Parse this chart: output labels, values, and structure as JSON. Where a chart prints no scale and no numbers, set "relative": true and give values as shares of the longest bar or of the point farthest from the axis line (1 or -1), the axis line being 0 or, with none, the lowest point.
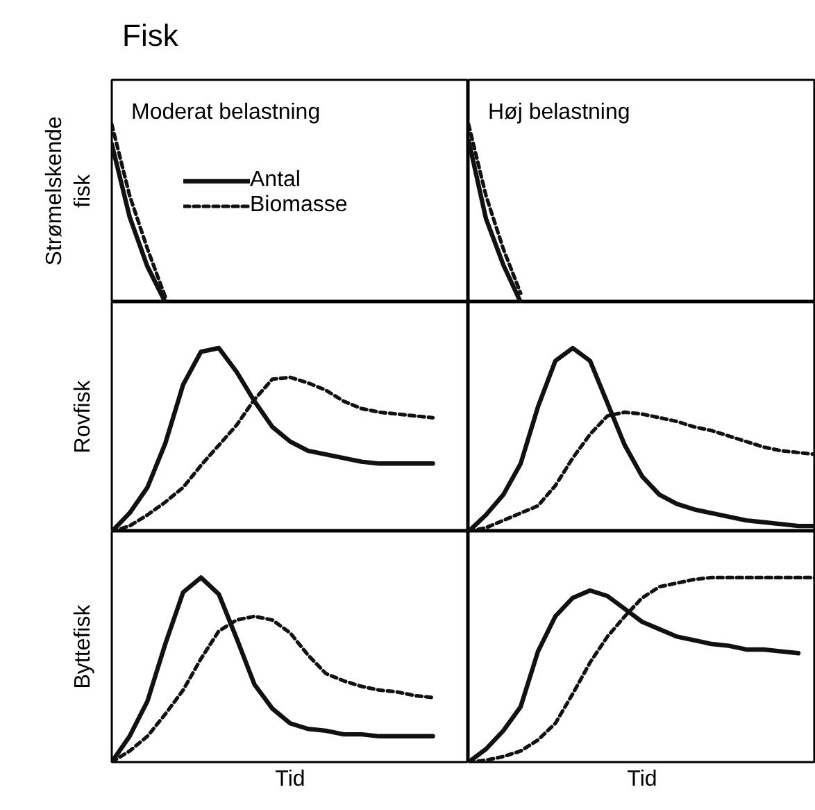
{
  "chart_data": [
    {
      "type": "line",
      "title": "Fisk",
      "subtitle": "Moderat belastning",
      "ylabel": "Strømelskende fisk",
      "relative": true,
      "legend": "top left",
      "categories": [
        null,
        null,
        null,
        null,
        null,
        null,
        null,
        null,
        null,
        null,
        null,
        null,
        null,
        null,
        null,
        null,
        null,
        null,
        null,
        null,
        null
      ],
      "series": [
        {
          "name": "Antal",
          "color": "#111111",
          "line_style": "solid",
          "values": [
            0.89,
            0.48,
            0.2,
            0.0,
            null,
            null,
            null,
            null,
            null,
            null,
            null,
            null,
            null,
            null,
            null,
            null,
            null,
            null,
            null,
            null,
            null
          ]
        },
        {
          "name": "Biomasse",
          "color": "#111111",
          "line_style": "dashed",
          "values": [
            1.0,
            0.6,
            0.3,
            0.03,
            null,
            null,
            null,
            null,
            null,
            null,
            null,
            null,
            null,
            null,
            null,
            null,
            null,
            null,
            null,
            null,
            null
          ]
        }
      ]
    },
    {
      "type": "line",
      "subtitle": "Høj belastning",
      "relative": true,
      "categories": [
        null,
        null,
        null,
        null,
        null,
        null,
        null,
        null,
        null,
        null,
        null,
        null,
        null,
        null,
        null,
        null,
        null,
        null,
        null,
        null,
        null
      ],
      "series": [
        {
          "color": "#111111",
          "line_style": "solid",
          "values": [
            0.91,
            0.47,
            0.21,
            0.0,
            null,
            null,
            null,
            null,
            null,
            null,
            null,
            null,
            null,
            null,
            null,
            null,
            null,
            null,
            null,
            null,
            null
          ]
        },
        {
          "color": "#111111",
          "line_style": "dashed",
          "values": [
            1.0,
            0.6,
            0.3,
            0.05,
            null,
            null,
            null,
            null,
            null,
            null,
            null,
            null,
            null,
            null,
            null,
            null,
            null,
            null,
            null,
            null,
            null
          ]
        }
      ]
    },
    {
      "type": "line",
      "ylabel": "Rovfisk",
      "relative": true,
      "categories": [
        null,
        null,
        null,
        null,
        null,
        null,
        null,
        null,
        null,
        null,
        null,
        null,
        null,
        null,
        null,
        null,
        null,
        null,
        null,
        null,
        null
      ],
      "series": [
        {
          "color": "#111111",
          "line_style": "solid",
          "values": [
            0,
            0.1,
            0.24,
            0.48,
            0.8,
            0.98,
            1.0,
            0.87,
            0.71,
            0.57,
            0.49,
            0.44,
            0.42,
            0.4,
            0.38,
            0.37,
            0.37,
            0.37,
            0.37,
            null,
            null
          ]
        },
        {
          "color": "#111111",
          "line_style": "dashed",
          "values": [
            0,
            0.03,
            0.09,
            0.16,
            0.24,
            0.36,
            0.47,
            0.58,
            0.72,
            0.83,
            0.84,
            0.81,
            0.77,
            0.71,
            0.67,
            0.65,
            0.64,
            0.63,
            0.62,
            null,
            null
          ]
        }
      ]
    },
    {
      "type": "line",
      "relative": true,
      "categories": [
        null,
        null,
        null,
        null,
        null,
        null,
        null,
        null,
        null,
        null,
        null,
        null,
        null,
        null,
        null,
        null,
        null,
        null,
        null,
        null,
        null
      ],
      "series": [
        {
          "color": "#111111",
          "line_style": "solid",
          "values": [
            0,
            0.09,
            0.2,
            0.37,
            0.68,
            0.93,
            1,
            0.93,
            0.7,
            0.47,
            0.3,
            0.2,
            0.15,
            0.12,
            0.1,
            0.08,
            0.06,
            0.05,
            0.04,
            0.03,
            0.03
          ]
        },
        {
          "color": "#111111",
          "line_style": "dashed",
          "values": [
            0,
            0.02,
            0.06,
            0.1,
            0.14,
            0.25,
            0.4,
            0.53,
            0.63,
            0.65,
            0.64,
            0.62,
            0.6,
            0.57,
            0.55,
            0.52,
            0.49,
            0.46,
            0.44,
            0.43,
            0.42
          ]
        }
      ]
    },
    {
      "type": "line",
      "ylabel": "Byttefisk",
      "xlabel": "Tid",
      "relative": true,
      "categories": [
        null,
        null,
        null,
        null,
        null,
        null,
        null,
        null,
        null,
        null,
        null,
        null,
        null,
        null,
        null,
        null,
        null,
        null,
        null,
        null,
        null
      ],
      "series": [
        {
          "color": "#111111",
          "line_style": "solid",
          "values": [
            0,
            0.14,
            0.33,
            0.64,
            0.92,
            1,
            0.91,
            0.67,
            0.42,
            0.29,
            0.21,
            0.18,
            0.17,
            0.15,
            0.15,
            0.14,
            0.14,
            0.14,
            0.14,
            null,
            null
          ]
        },
        {
          "color": "#111111",
          "line_style": "dashed",
          "values": [
            0,
            0.06,
            0.14,
            0.26,
            0.39,
            0.56,
            0.71,
            0.77,
            0.79,
            0.77,
            0.7,
            0.58,
            0.48,
            0.44,
            0.41,
            0.39,
            0.38,
            0.36,
            0.35,
            null,
            null
          ]
        }
      ]
    },
    {
      "type": "line",
      "xlabel": "Tid",
      "relative": true,
      "categories": [
        null,
        null,
        null,
        null,
        null,
        null,
        null,
        null,
        null,
        null,
        null,
        null,
        null,
        null,
        null,
        null,
        null,
        null,
        null,
        null,
        null
      ],
      "series": [
        {
          "color": "#111111",
          "line_style": "solid",
          "values": [
            0,
            0.07,
            0.17,
            0.3,
            0.6,
            0.79,
            0.89,
            0.93,
            0.9,
            0.83,
            0.76,
            0.72,
            0.68,
            0.66,
            0.64,
            0.63,
            0.61,
            0.61,
            0.6,
            0.59,
            null
          ]
        },
        {
          "color": "#111111",
          "line_style": "dashed",
          "values": [
            0,
            0.01,
            0.03,
            0.06,
            0.12,
            0.21,
            0.37,
            0.54,
            0.68,
            0.79,
            0.89,
            0.95,
            0.97,
            0.99,
            1,
            1,
            1,
            1,
            1,
            1,
            1
          ]
        }
      ]
    }
  ]
}
